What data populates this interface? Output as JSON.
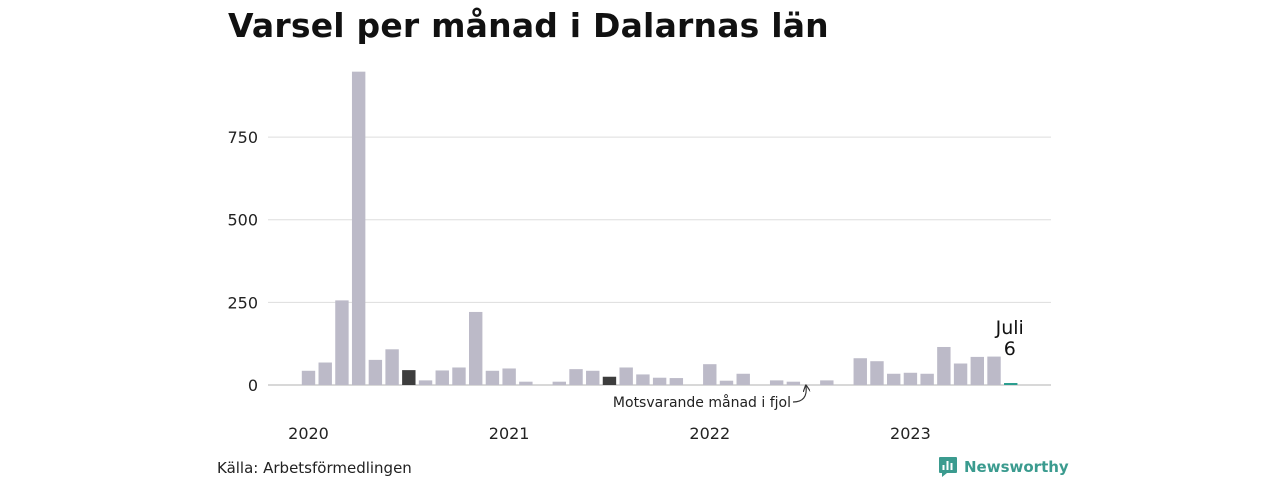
{
  "title": "Varsel per månad i Dalarnas län",
  "source": "Källa: Arbetsförmedlingen",
  "brand": "Newsworthy",
  "chart_data": {
    "type": "bar",
    "title": "Varsel per månad i Dalarnas län",
    "xlabel": "",
    "ylabel": "",
    "ylim": [
      0,
      950
    ],
    "yticks": [
      0,
      250,
      500,
      750
    ],
    "year_ticks": [
      {
        "label": "2020",
        "index": 0
      },
      {
        "label": "2021",
        "index": 12
      },
      {
        "label": "2022",
        "index": 24
      },
      {
        "label": "2023",
        "index": 36
      }
    ],
    "grid": true,
    "colors": {
      "default": "#bcbac8",
      "same_month": "#3d3d3d",
      "current": "#2a9d8f",
      "grid": "#dddddd",
      "axis": "#cccccc",
      "brand": "#3b9b8f"
    },
    "categories": [
      "2020-01",
      "2020-02",
      "2020-03",
      "2020-04",
      "2020-05",
      "2020-06",
      "2020-07",
      "2020-08",
      "2020-09",
      "2020-10",
      "2020-11",
      "2020-12",
      "2021-01",
      "2021-02",
      "2021-03",
      "2021-04",
      "2021-05",
      "2021-06",
      "2021-07",
      "2021-08",
      "2021-09",
      "2021-10",
      "2021-11",
      "2021-12",
      "2022-01",
      "2022-02",
      "2022-03",
      "2022-04",
      "2022-05",
      "2022-06",
      "2022-07",
      "2022-08",
      "2022-09",
      "2022-10",
      "2022-11",
      "2022-12",
      "2023-01",
      "2023-02",
      "2023-03",
      "2023-04",
      "2023-05",
      "2023-06",
      "2023-07"
    ],
    "values": [
      43,
      68,
      256,
      948,
      76,
      108,
      45,
      14,
      44,
      53,
      221,
      43,
      50,
      10,
      0,
      10,
      48,
      43,
      25,
      53,
      32,
      22,
      21,
      0,
      63,
      13,
      34,
      0,
      14,
      10,
      0,
      14,
      0,
      81,
      72,
      34,
      37,
      34,
      115,
      65,
      85,
      86,
      6
    ],
    "same_month_indices": [
      6,
      18
    ],
    "current_index": 42,
    "current_label": {
      "month": "Juli",
      "value": "6"
    },
    "annotation": "Motsvarande månad i fjol"
  }
}
